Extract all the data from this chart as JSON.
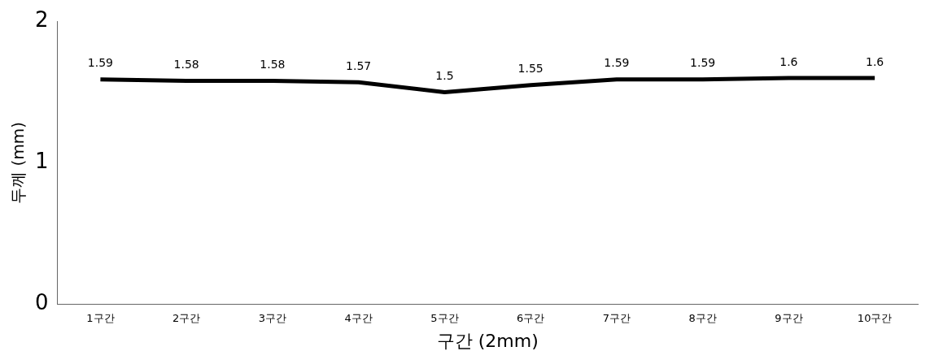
{
  "chart_data": {
    "type": "line",
    "xlabel": "구간 (2mm)",
    "ylabel": "두께 (mm)",
    "categories": [
      "1구간",
      "2구간",
      "3구간",
      "4구간",
      "5구간",
      "6구간",
      "7구간",
      "8구간",
      "9구간",
      "10구간"
    ],
    "series": [
      {
        "color": "#000000",
        "values": [
          1.59,
          1.58,
          1.58,
          1.57,
          1.5,
          1.55,
          1.59,
          1.59,
          1.6,
          1.6
        ]
      }
    ],
    "ylim": [
      0,
      2
    ],
    "yticks": [
      0,
      1,
      2
    ],
    "grid": false,
    "legend": false,
    "marker": "none",
    "line_style": "solid",
    "data_labels": true
  }
}
